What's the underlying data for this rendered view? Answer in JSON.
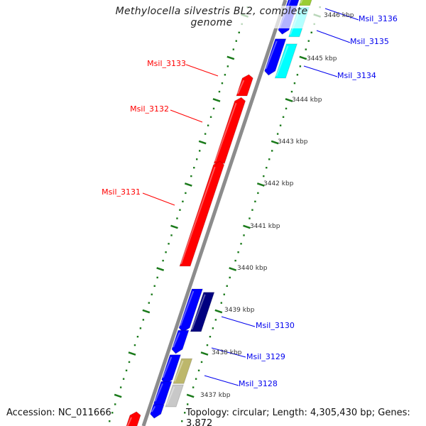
{
  "title": "Methylocella silvestris BL2, complete genome",
  "footer": {
    "accession": "Accession: NC_011666",
    "summary": "Topology: circular; Length: 4,305,430 bp; Genes: 3,872"
  },
  "colors": {
    "backbone": "#8c8c8c",
    "ticks": "#1a7a1a",
    "reverse_label": "#ff0000",
    "forward_label": "#0000ee"
  },
  "kbp_labels": [
    "3446 kbp",
    "3445 kbp",
    "3444 kbp",
    "3443 kbp",
    "3442 kbp",
    "3441 kbp",
    "3440 kbp",
    "3439 kbp",
    "3438 kbp",
    "3437 kbp"
  ],
  "gene_labels": {
    "msil_3136": "Msil_3136",
    "msil_3135": "Msil_3135",
    "msil_3134": "Msil_3134",
    "msil_3133": "Msil_3133",
    "msil_3132": "Msil_3132",
    "msil_3131": "Msil_3131",
    "msil_3130": "Msil_3130",
    "msil_3129": "Msil_3129",
    "msil_3128": "Msil_3128"
  },
  "genes": [
    {
      "start_kbp": 3444.52,
      "end_kbp": 3444.1,
      "lane": "reverse",
      "color": "#ff0000",
      "arrow": true
    },
    {
      "start_kbp": 3443.98,
      "end_kbp": 3442.5,
      "lane": "reverse",
      "color": "#ff0000",
      "arrow": true
    },
    {
      "start_kbp": 3442.47,
      "end_kbp": 3440.07,
      "lane": "reverse",
      "color": "#ff0000",
      "arrow": true
    },
    {
      "start_kbp": 3436.54,
      "end_kbp": 3436.1,
      "lane": "reverse",
      "color": "#ff0000",
      "arrow": true
    },
    {
      "start_kbp": 3446.45,
      "end_kbp": 3445.66,
      "lane": "forward",
      "color": "#0000ff",
      "arrow": true
    },
    {
      "start_kbp": 3445.45,
      "end_kbp": 3444.69,
      "lane": "forward",
      "color": "#0000ff",
      "arrow": true
    },
    {
      "start_kbp": 3439.53,
      "end_kbp": 3438.61,
      "lane": "forward",
      "color": "#0000ff",
      "arrow": true
    },
    {
      "start_kbp": 3438.55,
      "end_kbp": 3438.1,
      "lane": "forward",
      "color": "#0000ff",
      "arrow": true
    },
    {
      "start_kbp": 3437.97,
      "end_kbp": 3437.38,
      "lane": "forward",
      "color": "#0000ff",
      "arrow": true
    },
    {
      "start_kbp": 3437.34,
      "end_kbp": 3436.82,
      "lane": "forward",
      "color": "#0000ff",
      "arrow": true
    },
    {
      "start_kbp": 3436.8,
      "end_kbp": 3436.57,
      "lane": "forward",
      "color": "#0000ff",
      "arrow": true
    },
    {
      "start_kbp": 3446.6,
      "end_kbp": 3446.24,
      "lane": "outer",
      "color": "#9acd32",
      "arrow": false
    },
    {
      "start_kbp": 3446.2,
      "end_kbp": 3445.5,
      "lane": "outer",
      "color": "#00ffff",
      "arrow": false
    },
    {
      "start_kbp": 3445.33,
      "end_kbp": 3444.52,
      "lane": "outer",
      "color": "#00ffff",
      "arrow": false
    },
    {
      "start_kbp": 3439.45,
      "end_kbp": 3438.52,
      "lane": "outer",
      "color": "#000080",
      "arrow": false
    },
    {
      "start_kbp": 3437.88,
      "end_kbp": 3437.29,
      "lane": "outer",
      "color": "#bdb76b",
      "arrow": false
    },
    {
      "start_kbp": 3437.26,
      "end_kbp": 3436.74,
      "lane": "outer",
      "color": "#c8c8c8",
      "arrow": false
    }
  ]
}
